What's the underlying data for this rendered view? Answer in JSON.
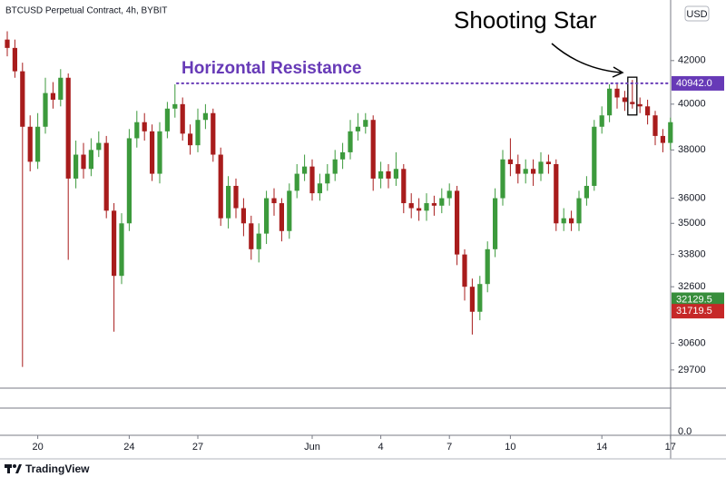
{
  "chart_data": {
    "type": "candlestick",
    "title": "BTCUSD Perpetual Contract, 4h, BYBIT",
    "currency": "USD",
    "brand": "TradingView",
    "log_scale": true,
    "up_color": "#3c9a3c",
    "down_color": "#a81c1c",
    "categories": [
      null,
      null,
      null,
      null,
      "20",
      null,
      null,
      null,
      null,
      null,
      null,
      null,
      null,
      null,
      null,
      null,
      "24",
      null,
      null,
      null,
      null,
      null,
      null,
      null,
      null,
      "27",
      null,
      null,
      null,
      null,
      null,
      null,
      null,
      null,
      null,
      null,
      null,
      null,
      null,
      null,
      "Jun",
      null,
      null,
      null,
      null,
      null,
      null,
      null,
      null,
      "4",
      null,
      null,
      null,
      null,
      null,
      null,
      null,
      null,
      "7",
      null,
      null,
      null,
      null,
      null,
      null,
      null,
      "10",
      null,
      null,
      null,
      null,
      null,
      null,
      null,
      null,
      null,
      null,
      null,
      "14",
      null,
      null,
      null,
      null,
      null,
      null,
      null,
      null,
      "17"
    ],
    "open": [
      43000,
      42600,
      41500,
      39000,
      37500,
      39000,
      40500,
      40200,
      41200,
      36800,
      37800,
      37200,
      38000,
      38300,
      35500,
      33000,
      35000,
      38500,
      39200,
      38800,
      37000,
      38800,
      39800,
      40000,
      38700,
      38200,
      39300,
      39600,
      37800,
      35200,
      36500,
      35600,
      35000,
      34000,
      34600,
      36000,
      35800,
      34700,
      36300,
      37000,
      37300,
      36200,
      36600,
      37000,
      37600,
      37900,
      38800,
      39000,
      39300,
      36800,
      37100,
      36800,
      37200,
      35800,
      35600,
      35500,
      35800,
      35700,
      36000,
      36300,
      33800,
      32600,
      31700,
      32700,
      34000,
      36000,
      37600,
      37400,
      37000,
      37200,
      37000,
      37500,
      37400,
      35000,
      35200,
      35000,
      36000,
      36500,
      39000,
      39500,
      40700,
      40300,
      40100,
      40000,
      39900,
      39500,
      38600,
      38300
    ],
    "high": [
      43400,
      43000,
      41900,
      39500,
      39600,
      41200,
      41000,
      41600,
      41400,
      38400,
      38300,
      38500,
      38800,
      38600,
      35800,
      35400,
      38900,
      39700,
      39600,
      39100,
      39200,
      40100,
      40900,
      40300,
      39100,
      39800,
      40000,
      39800,
      38100,
      36900,
      36800,
      36000,
      35300,
      35000,
      36300,
      36400,
      36000,
      36600,
      37400,
      37800,
      37600,
      37000,
      37400,
      38000,
      38300,
      39300,
      39600,
      39600,
      39500,
      37500,
      37400,
      37900,
      37400,
      36200,
      36000,
      36200,
      36100,
      36400,
      36600,
      36500,
      34000,
      32900,
      33000,
      34300,
      36400,
      38000,
      38500,
      37800,
      37600,
      37600,
      37900,
      37800,
      37600,
      35600,
      35500,
      36300,
      36900,
      39300,
      39900,
      40900,
      40900,
      40600,
      41100,
      40300,
      40200,
      39700,
      38900,
      39400
    ],
    "low": [
      42200,
      41200,
      29800,
      37100,
      37200,
      38700,
      39800,
      39900,
      33600,
      36400,
      36800,
      36900,
      37700,
      35200,
      31000,
      32700,
      34700,
      38100,
      38400,
      36700,
      36600,
      38500,
      39400,
      38400,
      37800,
      37900,
      38900,
      37500,
      34900,
      34800,
      35200,
      34500,
      33600,
      33500,
      34200,
      35300,
      34300,
      34400,
      36000,
      36700,
      35900,
      35900,
      36300,
      36700,
      37200,
      37600,
      38400,
      38700,
      36300,
      36400,
      36400,
      36500,
      35400,
      35200,
      35100,
      35100,
      35300,
      35400,
      35700,
      33400,
      32100,
      30900,
      31400,
      32400,
      33700,
      35700,
      36900,
      36600,
      36600,
      36500,
      36700,
      37000,
      34700,
      34700,
      34700,
      34700,
      35700,
      36300,
      38700,
      39200,
      39800,
      39700,
      39800,
      39600,
      39100,
      38200,
      37900,
      38000
    ],
    "close": [
      42600,
      41500,
      39000,
      37500,
      39000,
      40500,
      40200,
      41200,
      36800,
      37800,
      37200,
      38000,
      38300,
      35500,
      33000,
      35000,
      38500,
      39200,
      38800,
      37000,
      38800,
      39800,
      40000,
      38700,
      38200,
      39300,
      39600,
      37800,
      35200,
      36500,
      35600,
      35000,
      34000,
      34600,
      36000,
      35800,
      34700,
      36300,
      37000,
      37300,
      36200,
      36600,
      37000,
      37600,
      37900,
      38800,
      39000,
      39300,
      36800,
      37100,
      36800,
      37200,
      35800,
      35600,
      35500,
      35800,
      35700,
      36000,
      36300,
      33800,
      32600,
      31700,
      32700,
      34000,
      36000,
      37600,
      37400,
      37000,
      37200,
      37000,
      37500,
      37400,
      35000,
      35200,
      35000,
      36000,
      36500,
      39000,
      39500,
      40700,
      40300,
      40100,
      40000,
      39900,
      39500,
      38600,
      38300,
      39200
    ],
    "ylim": [
      29100,
      44950
    ],
    "yticks": [
      29700,
      30600,
      32600,
      33800,
      35000,
      36000,
      38000,
      40000,
      42000
    ],
    "price_labels": [
      {
        "value": 40942,
        "label": "40942.0",
        "color": "#673ab7"
      },
      {
        "value": 32129.5,
        "label": "32129.5",
        "color": "#388e3c"
      },
      {
        "value": 31719.5,
        "label": "31719.5",
        "color": "#c62828"
      }
    ],
    "pane2_yticks": [
      {
        "value": 0,
        "label": "0.0"
      }
    ],
    "annotations": {
      "resistance": "Horizontal Resistance",
      "pattern": "Shooting Star"
    },
    "highlight_index": 82
  }
}
